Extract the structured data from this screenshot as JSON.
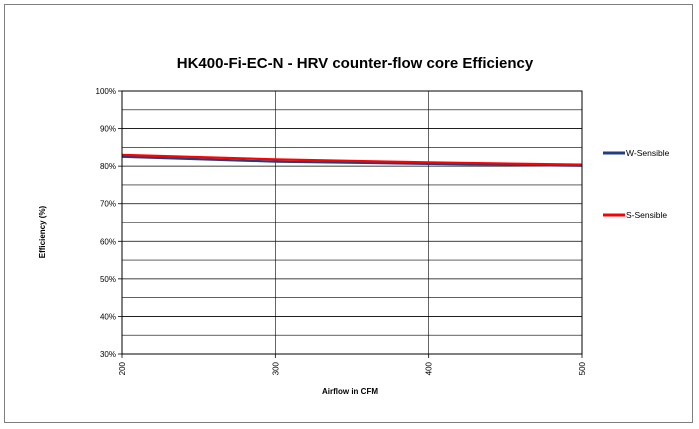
{
  "chart_data": {
    "type": "line",
    "title": "HK400-Fi-EC-N - HRV counter-flow core Efficiency",
    "xlabel": "Airflow in CFM",
    "ylabel": "Efficiency (%)",
    "xlim": [
      200,
      500
    ],
    "ylim": [
      30,
      100
    ],
    "x_ticks": [
      200,
      300,
      400,
      500
    ],
    "y_ticks": [
      30,
      40,
      50,
      60,
      70,
      80,
      90,
      100
    ],
    "y_minor_ticks": [
      35,
      45,
      55,
      65,
      75,
      85,
      95
    ],
    "y_tick_suffix": "%",
    "grid": true,
    "legend_position": "right",
    "series": [
      {
        "name": "W-Sensible",
        "color": "#1f3f7f",
        "x": [
          200,
          300,
          400,
          500
        ],
        "y": [
          82.5,
          81.2,
          80.6,
          80.1
        ]
      },
      {
        "name": "S-Sensible",
        "color": "#ff0000",
        "x": [
          200,
          300,
          400,
          500
        ],
        "y": [
          83.0,
          81.8,
          81.0,
          80.4
        ]
      }
    ]
  }
}
